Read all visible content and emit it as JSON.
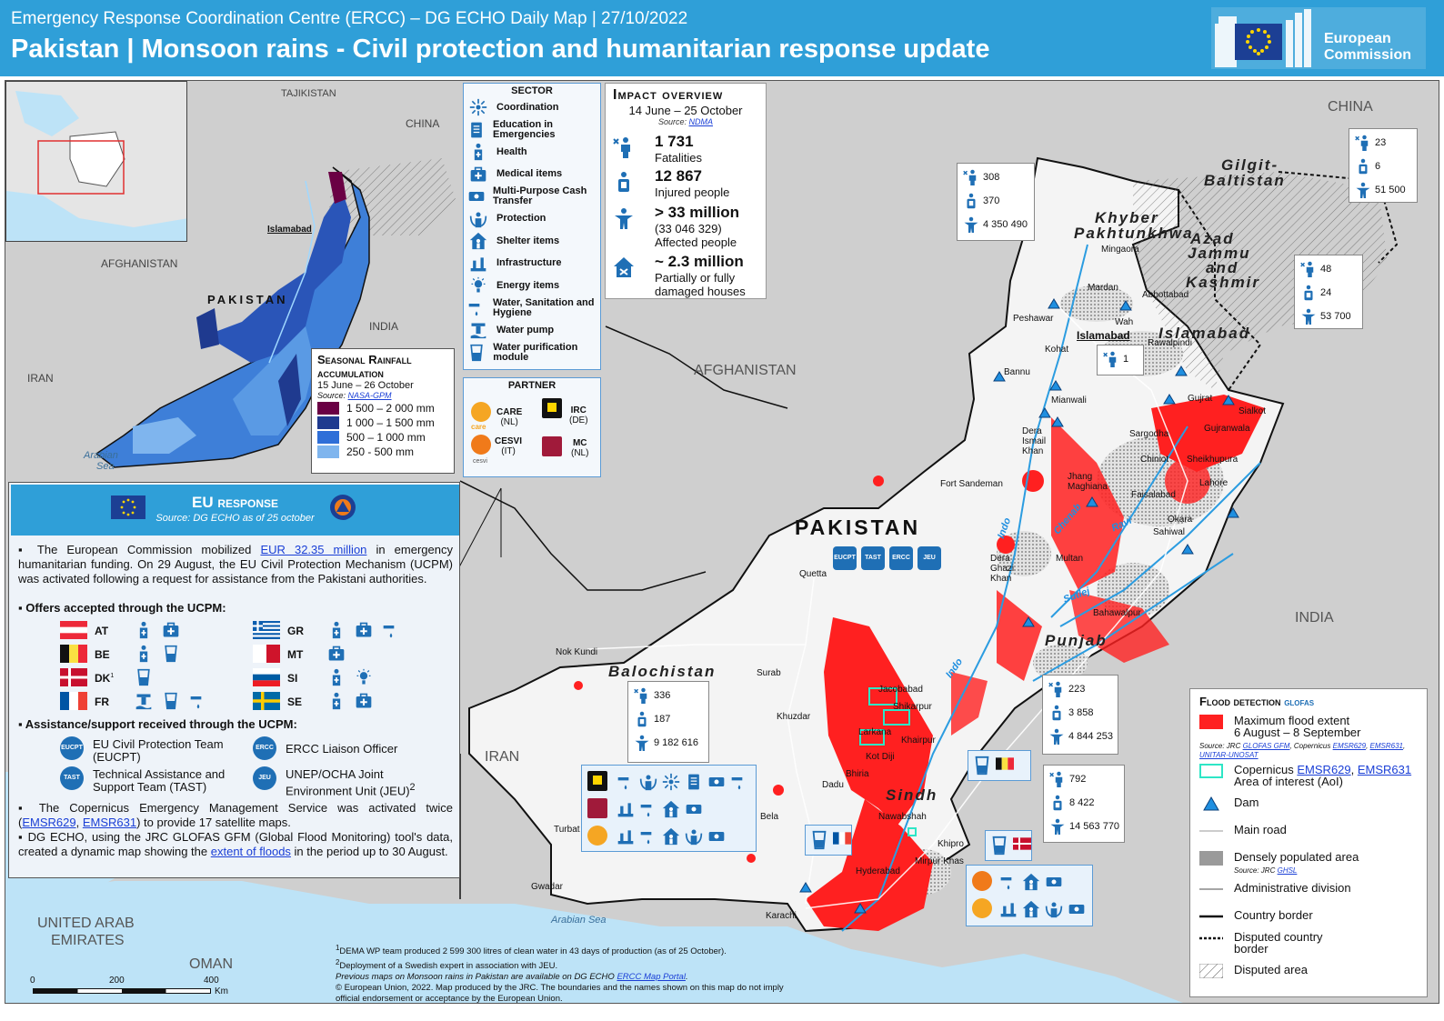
{
  "header": {
    "subtitle": "Emergency Response Coordination Centre (ERCC) – DG ECHO Daily Map | 27/10/2022",
    "title": "Pakistan | Monsoon rains - Civil protection and humanitarian response update",
    "logo_text_1": "European",
    "logo_text_2": "Commission"
  },
  "colors": {
    "brand": "#2f9fd8",
    "flood": "#ff2020",
    "icon": "#1f6fb5",
    "rain_1": "#6a0044",
    "rain_2": "#1f3a8f",
    "rain_3": "#2f6fd8",
    "rain_4": "#7fb5ee"
  },
  "map_labels": {
    "tajikistan": "TAJIKISTAN",
    "china_inset": "CHINA",
    "afghanistan_inset": "AFGHANISTAN",
    "pakistan_inset": "PAKISTAN",
    "india_inset": "INDIA",
    "iran_inset": "IRAN",
    "arabian_sea_inset_1": "Arabian",
    "arabian_sea_inset_2": "Sea",
    "islamabad_inset": "Islamabad",
    "afghanistan": "AFGHANISTAN",
    "pakistan": "PAKISTAN",
    "china": "CHINA",
    "india": "INDIA",
    "iran": "IRAN",
    "uae_1": "UNITED ARAB",
    "uae_2": "EMIRATES",
    "oman": "OMAN",
    "arabian_sea": "Arabian Sea",
    "gilgit_1": "Gilgit-",
    "gilgit_2": "Baltistan",
    "kp_1": "Khyber",
    "kp_2": "Pakhtunkhwa",
    "ajk_1": "Azad",
    "ajk_2": "Jammu",
    "ajk_3": "and",
    "ajk_4": "Kashmir",
    "islamabad_prov": "Islamabad",
    "punjab": "Punjab",
    "balochistan": "Balochistan",
    "sindh": "Sindh",
    "islamabad": "Islamabad",
    "river_indo_1": "Indo",
    "river_indo_2": "Indo",
    "river_chenab": "Chenab",
    "river_ravi": "Ravi",
    "river_sutlej": "Sutlej",
    "cities": [
      "Mingaora",
      "Mardan",
      "Abbottabad",
      "Peshawar",
      "Wah",
      "Rawalpindi",
      "Kohat",
      "Bannu",
      "Mianwali",
      "Gujrat",
      "Sialkot",
      "Gujranwala",
      "Sargodha",
      "Chiniot",
      "Sheikhupura",
      "Dera Ismail Khan",
      "Jhang Maghiana",
      "Faisalabad",
      "Lahore",
      "Okara",
      "Sahiwal",
      "Fort Sandeman",
      "Dera Ghazi Khan",
      "Multan",
      "Bahawalpur",
      "Quetta",
      "Nok Kundi",
      "Surab",
      "Khuzdar",
      "Jacobabad",
      "Shikarpur",
      "Larkana",
      "Khairpur",
      "Kot Diji",
      "Bhiria",
      "Dadu",
      "Bela",
      "Nawabshah",
      "Khipro",
      "Mirpur Khas",
      "Hyderabad",
      "Turbat",
      "Gwadar",
      "Karachi"
    ]
  },
  "rainfall_legend": {
    "title": "Seasonal Rainfall accumulation",
    "period": "15 June – 26 October",
    "source_prefix": "Source:",
    "source_link": "NASA-GPM",
    "classes": [
      "1 500 – 2 000 mm",
      "1 000 – 1 500 mm",
      "500 – 1 000 mm",
      "250 - 500 mm"
    ]
  },
  "sector_legend": {
    "title": "SECTOR",
    "items": [
      "Coordination",
      "Education in Emergencies",
      "Health",
      "Medical items",
      "Multi-Purpose Cash Transfer",
      "Protection",
      "Shelter items",
      "Infrastructure",
      "Energy items",
      "Water, Sanitation and Hygiene",
      "Water pump",
      "Water purification module"
    ],
    "icons": [
      "coordination-icon",
      "education-icon",
      "health-icon",
      "medical-items-icon",
      "cash-transfer-icon",
      "protection-icon",
      "shelter-icon",
      "infrastructure-icon",
      "energy-icon",
      "wash-icon",
      "water-pump-icon",
      "water-purification-icon"
    ]
  },
  "partner_legend": {
    "title": "PARTNER",
    "care": "CARE",
    "care_cc": "(NL)",
    "irc": "IRC",
    "irc_cc": "(DE)",
    "cesvi": "CESVI",
    "cesvi_cc": "(IT)",
    "mc": "MC",
    "mc_cc": "(NL)",
    "care_logo": "care",
    "cesvi_logo": "cesvi"
  },
  "impact": {
    "title": "Impact overview",
    "period": "14 June – 25 October",
    "source_prefix": "Source:",
    "source_link": "NDMA",
    "fatalities_value": "1 731",
    "fatalities_label": "Fatalities",
    "injured_value": "12 867",
    "injured_label": "Injured people",
    "affected_value": "> 33 million",
    "affected_exact": "(33 046 329)",
    "affected_label": "Affected people",
    "houses_value": "~ 2.3 million",
    "houses_label_1": "Partially or fully",
    "houses_label_2": "damaged houses"
  },
  "eu_response": {
    "title": "EU response",
    "source": "Source: DG ECHO as of 25 october",
    "p1_a": "The European Commission mobilized",
    "p1_link": "EUR 32.35 million",
    "p1_b": "in emergency humanitarian funding. On 29 August, the EU Civil Protection Mechanism (UCPM) was activated following a request for assistance from the Pakistani authorities.",
    "offers_heading": "Offers accepted through the UCPM:",
    "countries": [
      "AT",
      "BE",
      "DK",
      "FR",
      "GR",
      "MT",
      "SI",
      "SE"
    ],
    "dk_sup": "1",
    "assist_heading": "Assistance/support received through the UCPM:",
    "teams": {
      "eucpt_badge": "EUCPT",
      "eucpt_1": "EU Civil Protection Team",
      "eucpt_2": "(EUCPT)",
      "tast_badge": "TAST",
      "tast_1": "Technical Assistance and",
      "tast_2": "Support Team (TAST)",
      "ercc_badge": "ERCC",
      "ercc_1": "ERCC Liaison Officer",
      "jeu_badge": "JEU",
      "jeu_1": "UNEP/OCHA Joint",
      "jeu_2": "Environment Unit (JEU)",
      "jeu_sup": "2"
    },
    "p2_a": "The Copernicus Emergency Management Service was activated twice (",
    "p2_link1": "EMSR629",
    "p2_sep": ", ",
    "p2_link2": "EMSR631",
    "p2_b": ") to provide 17 satellite maps.",
    "p3_a": "DG ECHO, using the JRC GLOFAS GFM (Global Flood Monitoring) tool's data, created a dynamic map showing the",
    "p3_link": "extent of floods",
    "p3_b": "in the period up to 30 August."
  },
  "map_badges": [
    "EUCPT",
    "TAST",
    "ERCC",
    "JEU"
  ],
  "stats": {
    "kp": [
      "308",
      "370",
      "4 350 490"
    ],
    "gb": [
      "23",
      "6",
      "51 500"
    ],
    "ajk": [
      "48",
      "24",
      "53 700"
    ],
    "isl": [
      "1"
    ],
    "punjab": [
      "223",
      "3 858",
      "4 844 253"
    ],
    "balochistan": [
      "336",
      "187",
      "9 182 616"
    ],
    "sindh": [
      "792",
      "8 422",
      "14 563 770"
    ]
  },
  "flood_legend": {
    "title": "Flood detection",
    "glofas": "GLOFAS",
    "max_flood_1": "Maximum flood extent",
    "max_flood_2": "6 August – 8 September",
    "source_a": "Source: JRC",
    "source_l1": "GLOFAS GFM",
    "source_b": ", Copernicus",
    "source_l2": "EMSR629",
    "source_l3": "EMSR631",
    "source_l4": "UNITAR-UNOSAT",
    "aoi_a": "Copernicus",
    "aoi_l1": "EMSR629",
    "aoi_l2": "EMSR631",
    "aoi_b": "Area of interest (AoI)",
    "dam": "Dam",
    "road": "Main road",
    "dense": "Densely populated area",
    "dense_src_a": "Source: JRC",
    "dense_src_l": "GHSL",
    "admin": "Administrative division",
    "border": "Country border",
    "disputed_border_1": "Disputed country",
    "disputed_border_2": "border",
    "disputed_area": "Disputed area"
  },
  "footnotes": {
    "f1": "DEMA WP team produced 2 599 300 litres of clean water in 43 days of production (as of 25 October).",
    "f2": "Deployment of a Swedish expert in association with JEU.",
    "f3_a": "Previous maps on Monsoon rains in Pakistan are available on DG ECHO",
    "f3_link": "ERCC Map Portal",
    "f4": "© European Union, 2022. Map produced by the JRC. The boundaries and the names shown on this map do not imply official endorsement or acceptance by the European Union."
  },
  "scale": {
    "s0": "0",
    "s1": "200",
    "s2": "400",
    "unit": "Km"
  }
}
